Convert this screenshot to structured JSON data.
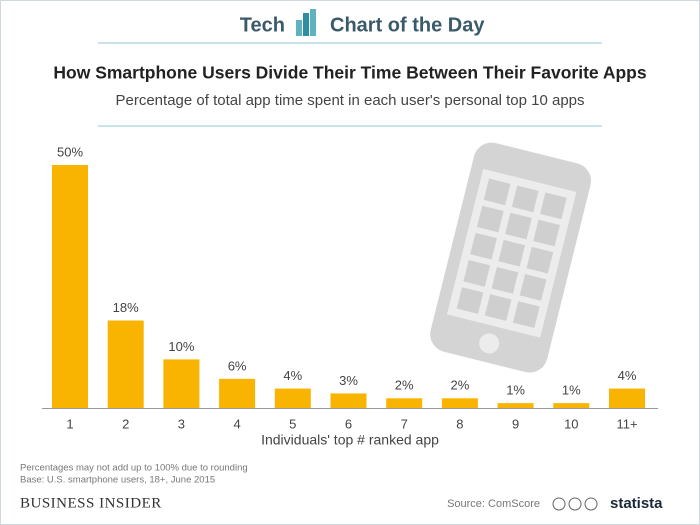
{
  "header": {
    "left": "Tech",
    "right": "Chart of the Day"
  },
  "chart_data": {
    "type": "bar",
    "title": "How Smartphone Users Divide Their Time Between Their Favorite Apps",
    "subtitle": "Percentage of total app time spent in each user's personal top 10 apps",
    "x_label": "Individuals' top # ranked app",
    "categories": [
      "1",
      "2",
      "3",
      "4",
      "5",
      "6",
      "7",
      "8",
      "9",
      "10",
      "11+"
    ],
    "values": [
      50,
      18,
      10,
      6,
      4,
      3,
      2,
      2,
      1,
      1,
      4
    ],
    "value_labels": [
      "50%",
      "18%",
      "10%",
      "6%",
      "4%",
      "3%",
      "2%",
      "2%",
      "1%",
      "1%",
      "4%"
    ],
    "color": "#f8b400"
  },
  "footer": {
    "notes": [
      "Percentages may not add up to 100% due to rounding",
      "Base: U.S. smartphone users, 18+, June 2015"
    ],
    "brand": "BUSINESS INSIDER",
    "source": "Source: ComScore",
    "logo": "statista"
  }
}
